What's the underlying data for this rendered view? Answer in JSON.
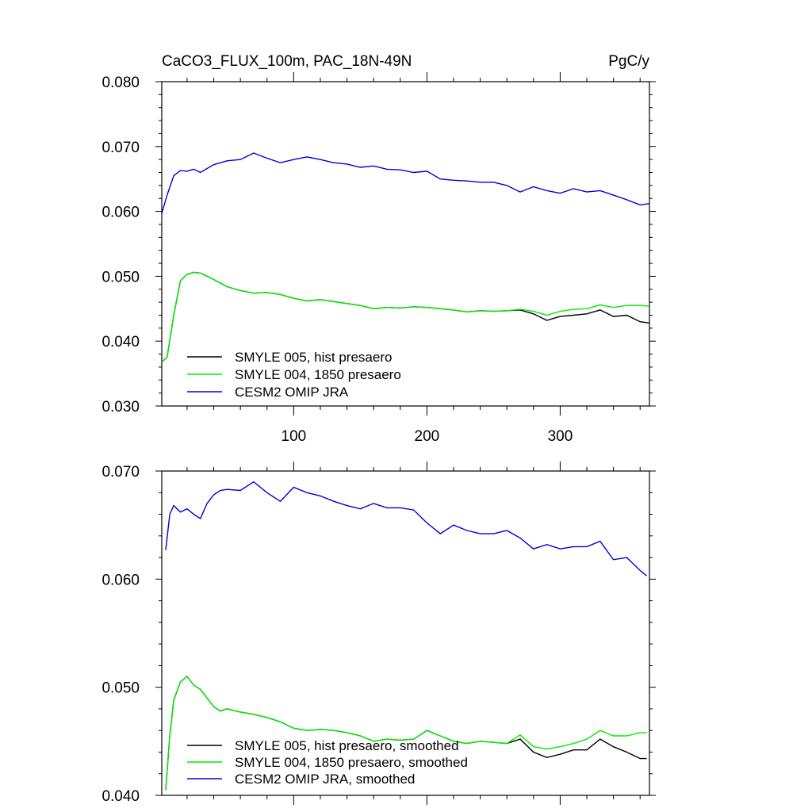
{
  "figure": {
    "title_left": "CaCO3_FLUX_100m, PAC_18N-49N",
    "title_right": "PgC/y"
  },
  "chart_data": [
    {
      "type": "line",
      "title": "CaCO3_FLUX_100m, PAC_18N-49N",
      "units": "PgC/y",
      "xlim": [
        1,
        367
      ],
      "ylim": [
        0.03,
        0.08
      ],
      "x_ticks": [
        100,
        200,
        300
      ],
      "y_ticks": [
        "0.030",
        "0.040",
        "0.050",
        "0.060",
        "0.070",
        "0.080"
      ],
      "legend_placement": "bottom-left",
      "grid": false,
      "smoothed": false,
      "series": [
        {
          "name": "SMYLE 005, hist presaero",
          "color": "#000000",
          "x": [
            1,
            5,
            10,
            15,
            20,
            25,
            30,
            40,
            50,
            60,
            70,
            80,
            90,
            100,
            110,
            120,
            130,
            140,
            150,
            160,
            170,
            180,
            190,
            200,
            210,
            220,
            230,
            240,
            250,
            260,
            270,
            280,
            290,
            300,
            310,
            320,
            330,
            340,
            350,
            360,
            367
          ],
          "y": [
            0.0368,
            0.0375,
            0.044,
            0.0493,
            0.0503,
            0.0506,
            0.0505,
            0.0495,
            0.0484,
            0.0478,
            0.0474,
            0.0475,
            0.0472,
            0.0466,
            0.0462,
            0.0464,
            0.0461,
            0.0458,
            0.0455,
            0.045,
            0.0452,
            0.0451,
            0.0453,
            0.0452,
            0.045,
            0.0448,
            0.0445,
            0.0447,
            0.0446,
            0.0447,
            0.0448,
            0.0442,
            0.0432,
            0.0438,
            0.044,
            0.0442,
            0.0448,
            0.0438,
            0.044,
            0.043,
            0.0428
          ]
        },
        {
          "name": "SMYLE 004, 1850 presaero",
          "color": "#00ee00",
          "x": [
            1,
            5,
            10,
            15,
            20,
            25,
            30,
            40,
            50,
            60,
            70,
            80,
            90,
            100,
            110,
            120,
            130,
            140,
            150,
            160,
            170,
            180,
            190,
            200,
            210,
            220,
            230,
            240,
            250,
            260,
            270,
            280,
            290,
            300,
            310,
            320,
            330,
            340,
            350,
            360,
            367
          ],
          "y": [
            0.0368,
            0.0375,
            0.044,
            0.0493,
            0.0503,
            0.0506,
            0.0505,
            0.0495,
            0.0484,
            0.0478,
            0.0474,
            0.0475,
            0.0472,
            0.0466,
            0.0462,
            0.0464,
            0.0461,
            0.0458,
            0.0455,
            0.045,
            0.0452,
            0.0451,
            0.0453,
            0.0452,
            0.045,
            0.0448,
            0.0445,
            0.0447,
            0.0446,
            0.0447,
            0.0449,
            0.0446,
            0.044,
            0.0446,
            0.0449,
            0.045,
            0.0456,
            0.0452,
            0.0455,
            0.0455,
            0.0454
          ]
        },
        {
          "name": "CESM2 OMIP JRA",
          "color": "#0000dd",
          "x": [
            1,
            5,
            10,
            15,
            20,
            25,
            30,
            40,
            50,
            60,
            70,
            80,
            90,
            100,
            110,
            120,
            130,
            140,
            150,
            160,
            170,
            180,
            190,
            200,
            210,
            220,
            230,
            240,
            250,
            260,
            270,
            280,
            290,
            300,
            310,
            320,
            330,
            340,
            350,
            360,
            367
          ],
          "y": [
            0.0597,
            0.0625,
            0.0655,
            0.0663,
            0.0662,
            0.0665,
            0.066,
            0.0672,
            0.0678,
            0.068,
            0.069,
            0.0682,
            0.0675,
            0.068,
            0.0684,
            0.068,
            0.0675,
            0.0673,
            0.0668,
            0.067,
            0.0665,
            0.0664,
            0.066,
            0.0662,
            0.065,
            0.0648,
            0.0647,
            0.0645,
            0.0645,
            0.064,
            0.063,
            0.0638,
            0.0632,
            0.0628,
            0.0635,
            0.063,
            0.0632,
            0.0625,
            0.0618,
            0.061,
            0.0612
          ]
        }
      ]
    },
    {
      "type": "line",
      "xlim": [
        1,
        367
      ],
      "ylim": [
        0.04,
        0.07
      ],
      "y_ticks": [
        "0.040",
        "0.050",
        "0.060",
        "0.070"
      ],
      "legend_placement": "bottom-left",
      "grid": false,
      "smoothed": true,
      "series": [
        {
          "name": "SMYLE 005, hist presaero, smoothed",
          "color": "#000000",
          "x": [
            4,
            7,
            10,
            15,
            20,
            25,
            30,
            35,
            40,
            45,
            50,
            60,
            70,
            80,
            90,
            100,
            110,
            120,
            130,
            140,
            150,
            160,
            170,
            180,
            190,
            200,
            210,
            220,
            230,
            240,
            250,
            260,
            270,
            280,
            290,
            300,
            310,
            320,
            330,
            340,
            350,
            360,
            365
          ],
          "y": [
            0.0405,
            0.0455,
            0.0488,
            0.0505,
            0.051,
            0.0502,
            0.0498,
            0.049,
            0.0482,
            0.0478,
            0.048,
            0.0477,
            0.0475,
            0.0472,
            0.0468,
            0.0462,
            0.046,
            0.0461,
            0.046,
            0.0458,
            0.0455,
            0.045,
            0.0452,
            0.0451,
            0.0452,
            0.046,
            0.0455,
            0.045,
            0.0448,
            0.045,
            0.0449,
            0.0448,
            0.0452,
            0.044,
            0.0435,
            0.0438,
            0.0442,
            0.0442,
            0.0452,
            0.0445,
            0.044,
            0.0434,
            0.0434
          ]
        },
        {
          "name": "SMYLE 004, 1850 presaero, smoothed",
          "color": "#00ee00",
          "x": [
            4,
            7,
            10,
            15,
            20,
            25,
            30,
            35,
            40,
            45,
            50,
            60,
            70,
            80,
            90,
            100,
            110,
            120,
            130,
            140,
            150,
            160,
            170,
            180,
            190,
            200,
            210,
            220,
            230,
            240,
            250,
            260,
            270,
            280,
            290,
            300,
            310,
            320,
            330,
            340,
            350,
            360,
            365
          ],
          "y": [
            0.0405,
            0.0455,
            0.0488,
            0.0505,
            0.051,
            0.0502,
            0.0498,
            0.049,
            0.0482,
            0.0478,
            0.048,
            0.0477,
            0.0475,
            0.0472,
            0.0468,
            0.0462,
            0.046,
            0.0461,
            0.046,
            0.0458,
            0.0455,
            0.045,
            0.0452,
            0.0451,
            0.0452,
            0.046,
            0.0455,
            0.045,
            0.0448,
            0.045,
            0.0449,
            0.0448,
            0.0456,
            0.0445,
            0.0443,
            0.0445,
            0.0448,
            0.0452,
            0.046,
            0.0455,
            0.0455,
            0.0458,
            0.0458
          ]
        },
        {
          "name": "CESM2 OMIP JRA, smoothed",
          "color": "#0000dd",
          "x": [
            4,
            7,
            10,
            15,
            20,
            25,
            30,
            35,
            40,
            45,
            50,
            60,
            70,
            80,
            90,
            100,
            110,
            120,
            130,
            140,
            150,
            160,
            170,
            180,
            190,
            200,
            210,
            220,
            230,
            240,
            250,
            260,
            270,
            280,
            290,
            300,
            310,
            320,
            330,
            340,
            350,
            360,
            365
          ],
          "y": [
            0.0627,
            0.066,
            0.0668,
            0.0662,
            0.0665,
            0.066,
            0.0656,
            0.067,
            0.0678,
            0.0682,
            0.0683,
            0.0682,
            0.069,
            0.068,
            0.0672,
            0.0685,
            0.068,
            0.0677,
            0.0672,
            0.0668,
            0.0665,
            0.067,
            0.0666,
            0.0666,
            0.0664,
            0.0652,
            0.0642,
            0.065,
            0.0645,
            0.0642,
            0.0642,
            0.0645,
            0.0638,
            0.0628,
            0.0632,
            0.0628,
            0.063,
            0.063,
            0.0635,
            0.0618,
            0.062,
            0.0608,
            0.0603
          ]
        }
      ]
    }
  ]
}
